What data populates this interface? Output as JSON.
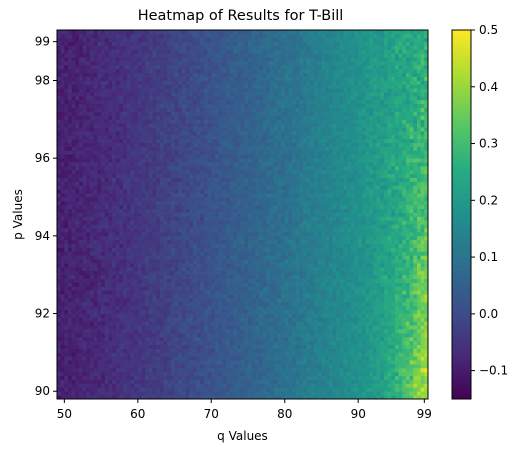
{
  "chart_data": {
    "type": "heatmap",
    "title": "Heatmap of Results for T-Bill",
    "xlabel": "q Values",
    "ylabel": "p Values",
    "x": {
      "start": 49,
      "end": 99.5,
      "step": 0.5
    },
    "y": {
      "start": 89.8,
      "end": 99.3,
      "step": 0.1
    },
    "xlim": [
      49,
      99.5
    ],
    "ylim": [
      89.8,
      99.3
    ],
    "x_ticks": [
      50,
      60,
      70,
      80,
      90,
      99
    ],
    "y_ticks": [
      90,
      92,
      94,
      96,
      98,
      99
    ],
    "colorbar": {
      "colormap": "viridis",
      "vmin": -0.15,
      "vmax": 0.5,
      "ticks": [
        -0.1,
        0.0,
        0.1,
        0.2,
        0.3,
        0.4,
        0.5
      ],
      "tick_labels": [
        "−0.1",
        "0.0",
        "0.1",
        "0.2",
        "0.3",
        "0.4",
        "0.5"
      ]
    },
    "value_model": {
      "description": "Values increase with q (about -0.1 at q=49 to about 0.27 at q=99.5); noisy; highest (near 0.5) at high q and low p.",
      "base": -0.09,
      "q_gain": 0.36,
      "q_exponent": 1.35,
      "low_p_bonus_at_high_q": 0.18,
      "noise": 0.035
    }
  }
}
